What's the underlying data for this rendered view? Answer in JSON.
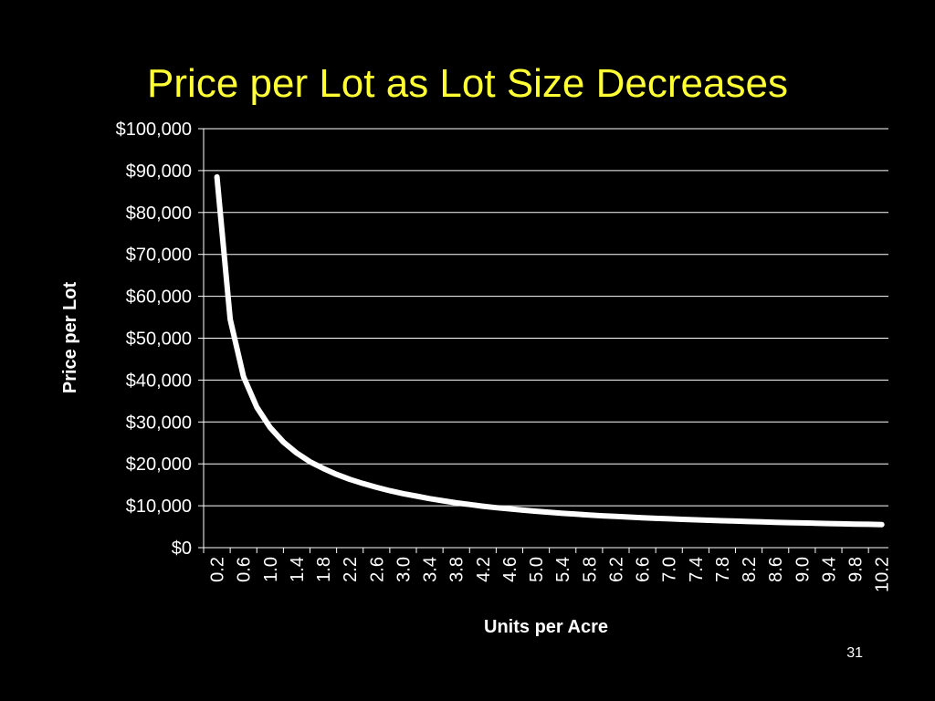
{
  "slide": {
    "title": "Price per Lot as Lot Size Decreases",
    "title_color": "#FFFF33",
    "page_number": "31",
    "background": "#000000"
  },
  "chart_data": {
    "type": "line",
    "title": "Price per Lot as Lot Size Decreases",
    "xlabel": "Units per Acre",
    "ylabel": "Price per Lot",
    "x_tick_labels": [
      "0.2",
      "0.6",
      "1.0",
      "1.4",
      "1.8",
      "2.2",
      "2.6",
      "3.0",
      "3.4",
      "3.8",
      "4.2",
      "4.6",
      "5.0",
      "5.4",
      "5.8",
      "6.2",
      "6.6",
      "7.0",
      "7.4",
      "7.8",
      "8.2",
      "8.6",
      "9.0",
      "9.4",
      "9.8",
      "10.2"
    ],
    "y_tick_labels": [
      "$0",
      "$10,000",
      "$20,000",
      "$30,000",
      "$40,000",
      "$50,000",
      "$60,000",
      "$70,000",
      "$80,000",
      "$90,000",
      "$100,000"
    ],
    "ylim": [
      0,
      100000
    ],
    "y_step": 10000,
    "grid": true,
    "legend": "none",
    "line_color": "#ffffff",
    "series": [
      {
        "x": [
          0.2,
          0.4,
          0.6,
          0.8,
          1.0,
          1.2,
          1.4,
          1.6,
          1.8,
          2.0,
          2.2,
          2.4,
          2.6,
          2.8,
          3.0,
          3.2,
          3.4,
          3.6,
          3.8,
          4.0,
          4.2,
          4.4,
          4.6,
          4.8,
          5.0,
          5.2,
          5.4,
          5.6,
          5.8,
          6.0,
          6.2,
          6.4,
          6.6,
          6.8,
          7.0,
          7.2,
          7.4,
          7.6,
          7.8,
          8.0,
          8.2,
          8.4,
          8.6,
          8.8,
          9.0,
          9.2,
          9.4,
          9.6,
          9.8,
          10.0,
          10.2
        ],
        "values": [
          88500,
          54500,
          40800,
          33500,
          28700,
          25200,
          22600,
          20500,
          18900,
          17500,
          16300,
          15300,
          14400,
          13600,
          12900,
          12300,
          11700,
          11200,
          10700,
          10300,
          9900,
          9550,
          9250,
          8950,
          8700,
          8450,
          8200,
          8000,
          7800,
          7600,
          7450,
          7300,
          7150,
          7000,
          6880,
          6760,
          6640,
          6530,
          6430,
          6330,
          6240,
          6150,
          6060,
          5980,
          5900,
          5830,
          5760,
          5690,
          5630,
          5570,
          5510
        ]
      }
    ]
  }
}
